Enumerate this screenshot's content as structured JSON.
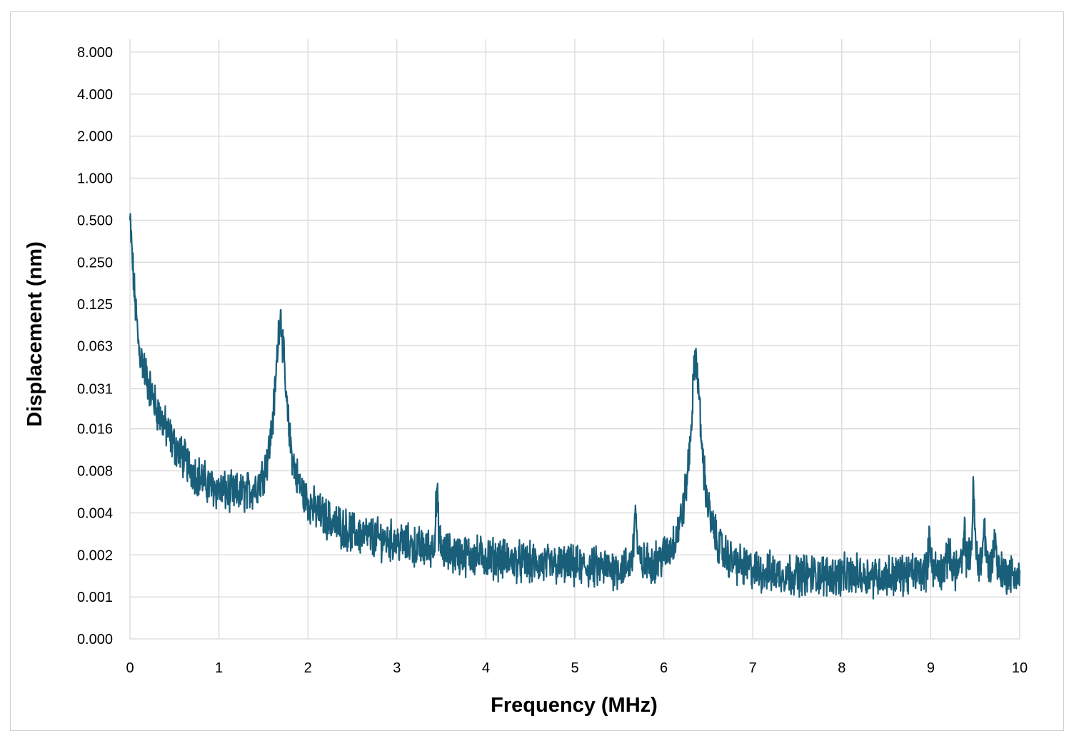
{
  "chart_data": {
    "type": "line",
    "xlabel": "Frequency (MHz)",
    "ylabel": "Displacement (nm)",
    "xlim": [
      0,
      10
    ],
    "x_ticks": [
      0,
      1,
      2,
      3,
      4,
      5,
      6,
      7,
      8,
      9,
      10
    ],
    "x_tick_labels": [
      "0",
      "1",
      "2",
      "3",
      "4",
      "5",
      "6",
      "7",
      "8",
      "9",
      "10"
    ],
    "y_scale": "log2",
    "y_tick_values": [
      0.0005,
      0.001,
      0.002,
      0.004,
      0.008,
      0.016,
      0.031,
      0.063,
      0.125,
      0.25,
      0.5,
      1,
      2,
      4,
      8
    ],
    "y_tick_labels": [
      "0.000",
      "0.001",
      "0.002",
      "0.004",
      "0.008",
      "0.016",
      "0.031",
      "0.063",
      "0.125",
      "0.250",
      "0.500",
      "1.000",
      "2.000",
      "4.000",
      "8.000"
    ],
    "grid": true,
    "line_color": "#1a5f7a",
    "baseline_noise": {
      "x": [
        0,
        0.05,
        0.1,
        0.2,
        0.3,
        0.5,
        0.7,
        0.9,
        1.1,
        1.3,
        1.5,
        2.0,
        2.5,
        3.0,
        3.5,
        4.0,
        4.5,
        5.0,
        5.5,
        6.0,
        6.5,
        7.0,
        7.5,
        8.0,
        8.5,
        9.0,
        9.5,
        10.0
      ],
      "y": [
        0.5,
        0.15,
        0.06,
        0.035,
        0.022,
        0.012,
        0.008,
        0.006,
        0.0052,
        0.0048,
        0.0045,
        0.0036,
        0.0027,
        0.0024,
        0.002,
        0.0019,
        0.0017,
        0.0016,
        0.0015,
        0.0015,
        0.0015,
        0.0014,
        0.0014,
        0.0014,
        0.0014,
        0.0015,
        0.0016,
        0.0014
      ]
    },
    "peaks": [
      {
        "x": 1.69,
        "y": 0.105
      },
      {
        "x": 3.45,
        "y": 0.0057
      },
      {
        "x": 5.68,
        "y": 0.0045
      },
      {
        "x": 6.36,
        "y": 0.052
      },
      {
        "x": 8.99,
        "y": 0.0028
      },
      {
        "x": 9.2,
        "y": 0.0023
      },
      {
        "x": 9.38,
        "y": 0.0027
      },
      {
        "x": 9.48,
        "y": 0.0055
      },
      {
        "x": 9.6,
        "y": 0.0033
      },
      {
        "x": 9.72,
        "y": 0.0029
      }
    ]
  }
}
